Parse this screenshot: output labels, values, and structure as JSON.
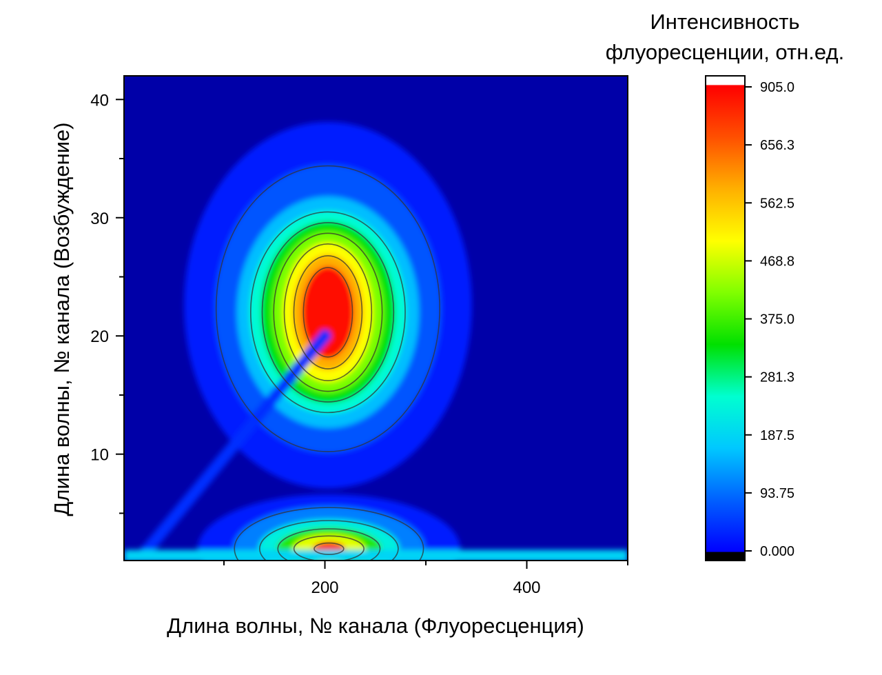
{
  "chart_data": {
    "type": "heatmap",
    "subtype": "contour map",
    "xlabel": "Длина волны, № канала (Флуоресценция)",
    "ylabel": "Длина волны, № канала (Возбуждение)",
    "xlim": [
      1,
      500
    ],
    "ylim": [
      1,
      42
    ],
    "x_ticks": [
      200,
      400
    ],
    "x_tick_labels": [
      "200",
      "400"
    ],
    "x_minor_ticks": [
      100,
      300,
      500
    ],
    "y_ticks": [
      10,
      20,
      30,
      40
    ],
    "y_tick_labels": [
      "10",
      "20",
      "30",
      "40"
    ],
    "y_minor_ticks": [
      5,
      15,
      25,
      35
    ],
    "grid": false,
    "colorbar": {
      "title_lines": [
        "Интенсивность",
        "флуоресценции, отн.ед."
      ],
      "range": [
        0,
        905
      ],
      "ticks": [
        0,
        93.75,
        187.5,
        281.3,
        375.0,
        468.8,
        562.5,
        656.3,
        905.0
      ],
      "tick_labels": [
        "0.000",
        "93.75",
        "187.5",
        "281.3",
        "375.0",
        "468.8",
        "562.5",
        "656.3",
        "905.0"
      ],
      "colormap": [
        "#000000",
        "#0000ff",
        "#0060ff",
        "#00c8ff",
        "#00ffd0",
        "#00e000",
        "#80ff00",
        "#ffff00",
        "#ffb000",
        "#ff5000",
        "#ff0000",
        "#ffffff"
      ]
    },
    "features": [
      {
        "kind": "peak",
        "x": 195,
        "y": 22,
        "peak_value": 905
      },
      {
        "kind": "peak",
        "x": 192,
        "y": 2,
        "peak_value": 905
      },
      {
        "kind": "diagonal scatter ridge",
        "from": [
          20,
          1.5
        ],
        "to": [
          200,
          20
        ]
      },
      {
        "kind": "baseline band",
        "y": 1.5,
        "x_range": [
          1,
          500
        ]
      }
    ],
    "contour_levels": [
      100,
      200,
      300,
      400,
      500,
      600,
      700
    ]
  }
}
